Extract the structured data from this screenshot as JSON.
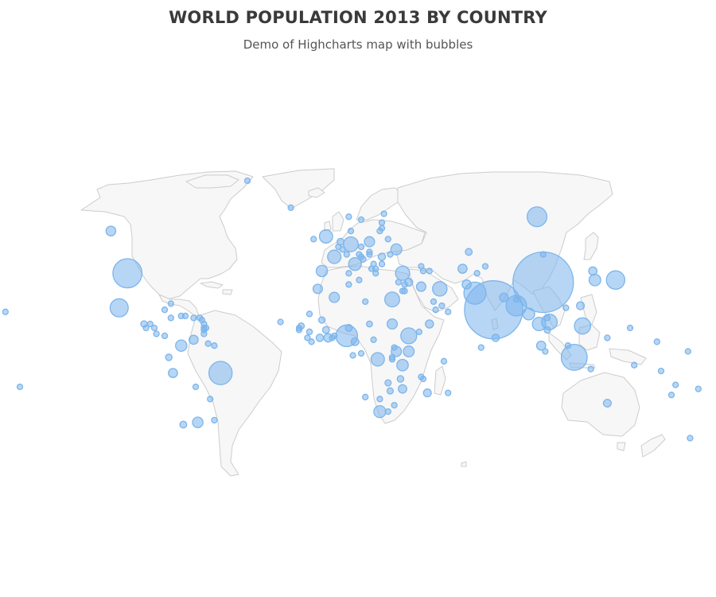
{
  "title": "WORLD POPULATION 2013 BY COUNTRY",
  "subtitle": "Demo of Highcharts map with bubbles",
  "colors": {
    "bubble": "#7cb5ec",
    "land": "#f7f7f7",
    "border": "#cccccc"
  },
  "chart_data": {
    "type": "map-bubble",
    "title": "WORLD POPULATION 2013 BY COUNTRY",
    "subtitle": "Demo of Highcharts map with bubbles",
    "projection": "miller",
    "bubbles": [
      [
        35,
        103,
        1357
      ],
      [
        22,
        79,
        1252
      ],
      [
        39,
        -98,
        316
      ],
      [
        -2,
        118,
        250
      ],
      [
        -10,
        -53,
        200
      ],
      [
        30,
        70,
        182
      ],
      [
        9,
        8,
        174
      ],
      [
        24,
        90,
        157
      ],
      [
        61,
        100,
        144
      ],
      [
        36,
        138,
        127
      ],
      [
        23,
        -102,
        122
      ],
      [
        14,
        122,
        98
      ],
      [
        9,
        38,
        94
      ],
      [
        16,
        106,
        90
      ],
      [
        27,
        30,
        82
      ],
      [
        51,
        10,
        81
      ],
      [
        32,
        53,
        77
      ],
      [
        39,
        35,
        75
      ],
      [
        -3,
        23,
        67
      ],
      [
        15,
        101,
        67
      ],
      [
        46,
        2,
        66
      ],
      [
        54,
        -2,
        64
      ],
      [
        43,
        12,
        60
      ],
      [
        -29,
        24,
        53
      ],
      [
        20,
        96,
        53
      ],
      [
        -6,
        35,
        49
      ],
      [
        36,
        128,
        50
      ],
      [
        4,
        -72,
        48
      ],
      [
        40,
        -4,
        47
      ],
      [
        1,
        38,
        44
      ],
      [
        1,
        32,
        38
      ],
      [
        49,
        32,
        45
      ],
      [
        -34,
        -64,
        41
      ],
      [
        28,
        2,
        39
      ],
      [
        15,
        30,
        38
      ],
      [
        33,
        44,
        33
      ],
      [
        52,
        19,
        38
      ],
      [
        56,
        -106,
        35
      ],
      [
        32,
        -6,
        33
      ],
      [
        41,
        64,
        30
      ],
      [
        -10,
        -76,
        30
      ],
      [
        7,
        -66,
        30
      ],
      [
        4,
        102,
        30
      ],
      [
        28,
        84,
        28
      ],
      [
        34,
        66,
        30
      ],
      [
        15,
        48,
        24
      ],
      [
        8,
        -1,
        26
      ],
      [
        -18,
        35,
        26
      ],
      [
        40,
        127,
        25
      ],
      [
        -25,
        134,
        23
      ],
      [
        -20,
        47,
        23
      ],
      [
        8,
        -5,
        20
      ],
      [
        6,
        12,
        22
      ],
      [
        24,
        121,
        23
      ],
      [
        35,
        38,
        23
      ],
      [
        8,
        80,
        20
      ],
      [
        46,
        25,
        20
      ],
      [
        12,
        -2,
        17
      ],
      [
        -13,
        34,
        16
      ],
      [
        13,
        9,
        17
      ],
      [
        17,
        -4,
        15
      ],
      [
        -35,
        -71,
        17
      ],
      [
        48,
        67,
        17
      ],
      [
        52,
        5,
        17
      ],
      [
        15,
        -90,
        15
      ],
      [
        -2,
        -78,
        16
      ],
      [
        12,
        105,
        15
      ],
      [
        15,
        19,
        13
      ],
      [
        14,
        -14,
        14
      ],
      [
        -15,
        28,
        14
      ],
      [
        -19,
        29,
        14
      ],
      [
        11,
        -10,
        12
      ],
      [
        -2,
        30,
        12
      ],
      [
        -17,
        -65,
        11
      ],
      [
        34,
        9,
        11
      ],
      [
        19,
        -72,
        10
      ],
      [
        50,
        4,
        11
      ],
      [
        3,
        31,
        11
      ],
      [
        -3,
        30,
        10
      ],
      [
        22,
        -80,
        11
      ],
      [
        39,
        22,
        11
      ],
      [
        50,
        15,
        11
      ],
      [
        9,
        2,
        10
      ],
      [
        39,
        9,
        10
      ],
      [
        19,
        -70,
        10
      ],
      [
        31,
        36,
        7
      ],
      [
        53,
        28,
        9
      ],
      [
        47,
        19,
        10
      ],
      [
        40,
        48,
        9
      ],
      [
        60,
        15,
        10
      ],
      [
        15,
        -87,
        8
      ],
      [
        24,
        54,
        9
      ],
      [
        47,
        8,
        8
      ],
      [
        39,
        71,
        8
      ],
      [
        -6,
        147,
        7
      ],
      [
        47,
        14,
        8
      ],
      [
        31,
        35,
        8
      ],
      [
        43,
        25,
        7
      ],
      [
        43,
        21,
        7
      ],
      [
        8,
        -11,
        6
      ],
      [
        18,
        105,
        7
      ],
      [
        34,
        36,
        4
      ],
      [
        26,
        17,
        6
      ],
      [
        23,
        114,
        7
      ],
      [
        13,
        -89,
        6
      ],
      [
        42,
        75,
        6
      ],
      [
        8,
        1,
        7
      ],
      [
        13,
        -85,
        6
      ],
      [
        -23,
        -58,
        7
      ],
      [
        56,
        10,
        6
      ],
      [
        62,
        26,
        5
      ],
      [
        0,
        15,
        4
      ],
      [
        48,
        19,
        5
      ],
      [
        1,
        104,
        5
      ],
      [
        61,
        9,
        5
      ],
      [
        7,
        21,
        5
      ],
      [
        -41,
        174,
        4
      ],
      [
        53,
        -8,
        5
      ],
      [
        10,
        -84,
        5
      ],
      [
        6,
        -9,
        4
      ],
      [
        45,
        16,
        4
      ],
      [
        21,
        57,
        4
      ],
      [
        9,
        -80,
        4
      ],
      [
        20,
        -10,
        4
      ],
      [
        42,
        44,
        4
      ],
      [
        47,
        29,
        4
      ],
      [
        18,
        -66,
        4
      ],
      [
        41,
        20,
        3
      ],
      [
        -33,
        -56,
        3
      ],
      [
        47,
        103,
        3
      ],
      [
        40,
        45,
        3
      ],
      [
        18,
        -77,
        3
      ],
      [
        56,
        24,
        3
      ],
      [
        -23,
        24,
        2
      ],
      [
        22,
        51,
        2
      ],
      [
        -22,
        17,
        2
      ],
      [
        41,
        22,
        2
      ],
      [
        13,
        -15,
        2
      ],
      [
        -29,
        28,
        2
      ],
      [
        57,
        25,
        2
      ],
      [
        46,
        15,
        2
      ],
      [
        12,
        -15,
        2
      ],
      [
        -1,
        11,
        2
      ],
      [
        10,
        -61,
        1
      ],
      [
        26,
        50,
        1
      ],
      [
        59,
        25,
        1
      ],
      [
        -20,
        57,
        1
      ],
      [
        -26,
        31,
        1
      ],
      [
        -8,
        126,
        1
      ],
      [
        11,
        43,
        1
      ],
      [
        -18,
        178,
        1
      ],
      [
        35,
        33,
        1
      ],
      [
        5,
        -59,
        1
      ],
      [
        27,
        90,
        1
      ],
      [
        49,
        6,
        1
      ],
      [
        4,
        -56,
        1
      ],
      [
        16,
        -24,
        1
      ],
      [
        3,
        73,
        1
      ],
      [
        36,
        14,
        1
      ],
      [
        4,
        115,
        1
      ],
      [
        64,
        -19,
        1
      ],
      [
        -16,
        167,
        1
      ],
      [
        -13,
        -172,
        1
      ],
      [
        -9,
        160,
        1
      ],
      [
        -21,
        165,
        1
      ],
      [
        1,
        173,
        1
      ],
      [
        6,
        158,
        1
      ],
      [
        -21,
        -175,
        1
      ],
      [
        8,
        134,
        1
      ],
      [
        -17,
        -150,
        1
      ],
      [
        -12,
        44,
        1
      ],
      [
        -4,
        55,
        1
      ],
      [
        -13,
        45,
        1
      ],
      [
        18,
        -63,
        1
      ],
      [
        13,
        -61,
        1
      ],
      [
        12,
        -61,
        1
      ],
      [
        13,
        -60,
        1
      ],
      [
        17,
        -62,
        1
      ],
      [
        25,
        -77,
        1
      ],
      [
        15,
        -61,
        1
      ],
      [
        21,
        -157,
        1
      ],
      [
        13,
        145,
        1
      ],
      [
        72,
        -40,
        1
      ]
    ]
  }
}
